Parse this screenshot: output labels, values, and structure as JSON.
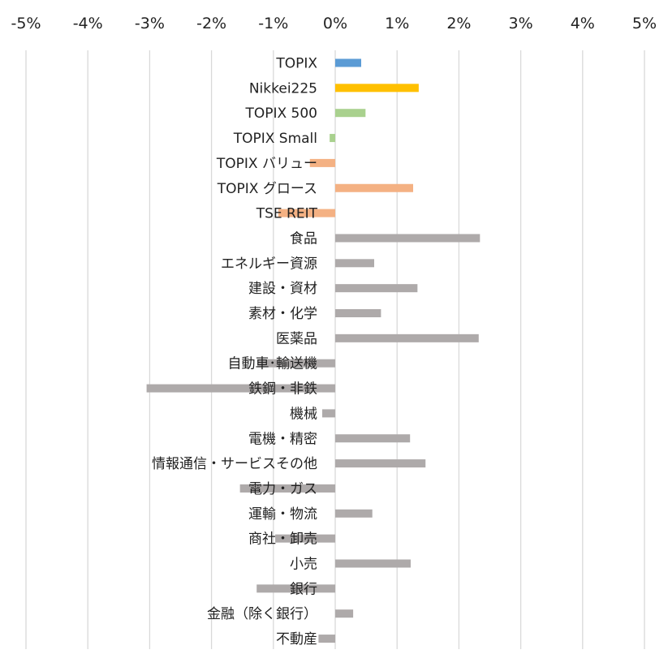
{
  "chart_data": {
    "type": "bar",
    "orientation": "horizontal",
    "x_tick_labels": [
      "-5%",
      "-4%",
      "-3%",
      "-2%",
      "-1%",
      "0%",
      "1%",
      "2%",
      "3%",
      "4%",
      "5%"
    ],
    "xlim": [
      -5,
      5
    ],
    "x_unit": "%",
    "grid": "vertical",
    "categories": [
      "TOPIX",
      "Nikkei225",
      "TOPIX 500",
      "TOPIX Small",
      "TOPIX バリュー",
      "TOPIX グロース",
      "TSE REIT",
      "食品",
      "エネルギー資源",
      "建設・資材",
      "素材・化学",
      "医薬品",
      "自動車･輸送機",
      "鉄鋼・非鉄",
      "機械",
      "電機・精密",
      "情報通信・サービスその他",
      "電力・ガス",
      "運輸・物流",
      "商社・卸売",
      "小売",
      "銀行",
      "金融（除く銀行）",
      "不動産"
    ],
    "values": [
      0.42,
      1.35,
      0.49,
      -0.09,
      -0.41,
      1.26,
      -0.92,
      2.34,
      0.63,
      1.33,
      0.74,
      2.32,
      -1.26,
      -3.05,
      -0.21,
      1.21,
      1.46,
      -1.54,
      0.6,
      -0.97,
      1.22,
      -1.27,
      0.29,
      -0.27
    ],
    "colors": [
      "#5b9bd5",
      "#ffc000",
      "#a9d18e",
      "#a9d18e",
      "#f4b183",
      "#f4b183",
      "#f4b183",
      "#aeaaaa",
      "#aeaaaa",
      "#aeaaaa",
      "#aeaaaa",
      "#aeaaaa",
      "#aeaaaa",
      "#aeaaaa",
      "#aeaaaa",
      "#aeaaaa",
      "#aeaaaa",
      "#aeaaaa",
      "#aeaaaa",
      "#aeaaaa",
      "#aeaaaa",
      "#aeaaaa",
      "#aeaaaa",
      "#aeaaaa"
    ],
    "gridline_color": "#d9d9d9"
  }
}
